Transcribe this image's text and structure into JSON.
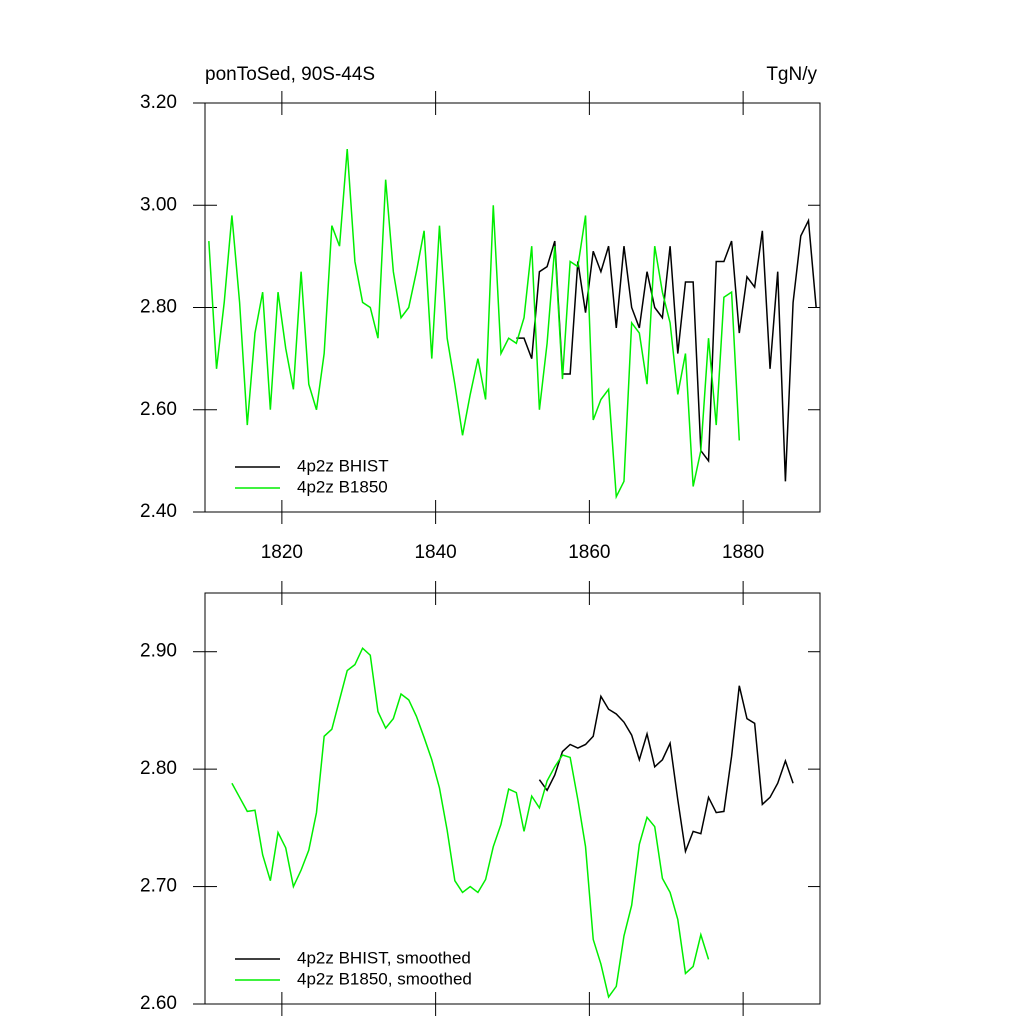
{
  "chart_data": [
    {
      "type": "line",
      "title": "ponToSed, 90S-44S",
      "subtitle": "TgN/y",
      "xlim": [
        1810,
        1890
      ],
      "xticks": [
        1820,
        1840,
        1860,
        1880
      ],
      "ylim": [
        2.4,
        3.2
      ],
      "yticks": [
        {
          "value": 2.4,
          "label": "2.40"
        },
        {
          "value": 2.6,
          "label": "2.60"
        },
        {
          "value": 2.8,
          "label": "2.80"
        },
        {
          "value": 3.0,
          "label": "3.00"
        },
        {
          "value": 3.2,
          "label": "3.20"
        }
      ],
      "legend": "lower left",
      "series": [
        {
          "name": "4p2z BHIST",
          "color": "#000000",
          "x": [
            1850.5,
            1851.5,
            1852.5,
            1853.5,
            1854.5,
            1855.5,
            1856.5,
            1857.5,
            1858.5,
            1859.5,
            1860.5,
            1861.5,
            1862.5,
            1863.5,
            1864.5,
            1865.5,
            1866.5,
            1867.5,
            1868.5,
            1869.5,
            1870.5,
            1871.5,
            1872.5,
            1873.5,
            1874.5,
            1875.5,
            1876.5,
            1877.5,
            1878.5,
            1879.5,
            1880.5,
            1881.5,
            1882.5,
            1883.5,
            1884.5,
            1885.5,
            1886.5,
            1887.5,
            1888.5,
            1889.5
          ],
          "values": [
            2.74,
            2.74,
            2.7,
            2.87,
            2.88,
            2.93,
            2.67,
            2.67,
            2.89,
            2.79,
            2.91,
            2.87,
            2.92,
            2.76,
            2.92,
            2.8,
            2.76,
            2.87,
            2.8,
            2.78,
            2.92,
            2.71,
            2.85,
            2.85,
            2.52,
            2.5,
            2.89,
            2.89,
            2.93,
            2.75,
            2.86,
            2.84,
            2.95,
            2.68,
            2.87,
            2.46,
            2.81,
            2.94,
            2.97,
            2.8
          ]
        },
        {
          "name": "4p2z B1850",
          "color": "#00ee00",
          "x": [
            1810.5,
            1811.5,
            1812.5,
            1813.5,
            1814.5,
            1815.5,
            1816.5,
            1817.5,
            1818.5,
            1819.5,
            1820.5,
            1821.5,
            1822.5,
            1823.5,
            1824.5,
            1825.5,
            1826.5,
            1827.5,
            1828.5,
            1829.5,
            1830.5,
            1831.5,
            1832.5,
            1833.5,
            1834.5,
            1835.5,
            1836.5,
            1837.5,
            1838.5,
            1839.5,
            1840.5,
            1841.5,
            1842.5,
            1843.5,
            1844.5,
            1845.5,
            1846.5,
            1847.5,
            1848.5,
            1849.5,
            1850.5,
            1851.5,
            1852.5,
            1853.5,
            1854.5,
            1855.5,
            1856.5,
            1857.5,
            1858.5,
            1859.5,
            1860.5,
            1861.5,
            1862.5,
            1863.5,
            1864.5,
            1865.5,
            1866.5,
            1867.5,
            1868.5,
            1869.5,
            1870.5,
            1871.5,
            1872.5,
            1873.5,
            1874.5,
            1875.5,
            1876.5,
            1877.5,
            1878.5,
            1879.5
          ],
          "values": [
            2.93,
            2.68,
            2.81,
            2.98,
            2.81,
            2.57,
            2.75,
            2.83,
            2.6,
            2.83,
            2.72,
            2.64,
            2.87,
            2.65,
            2.6,
            2.71,
            2.96,
            2.92,
            3.11,
            2.89,
            2.81,
            2.8,
            2.74,
            3.05,
            2.87,
            2.78,
            2.8,
            2.87,
            2.95,
            2.7,
            2.96,
            2.74,
            2.65,
            2.55,
            2.63,
            2.7,
            2.62,
            3.0,
            2.71,
            2.74,
            2.73,
            2.78,
            2.92,
            2.6,
            2.73,
            2.92,
            2.66,
            2.89,
            2.88,
            2.98,
            2.58,
            2.62,
            2.64,
            2.43,
            2.46,
            2.77,
            2.75,
            2.65,
            2.92,
            2.83,
            2.77,
            2.63,
            2.71,
            2.45,
            2.52,
            2.74,
            2.57,
            2.82,
            2.83,
            2.54
          ]
        }
      ]
    },
    {
      "type": "line",
      "xlim": [
        1810,
        1890
      ],
      "xticks": [
        1820,
        1840,
        1860,
        1880
      ],
      "ylim": [
        2.6,
        2.95
      ],
      "yticks": [
        {
          "value": 2.6,
          "label": "2.60"
        },
        {
          "value": 2.7,
          "label": "2.70"
        },
        {
          "value": 2.8,
          "label": "2.80"
        },
        {
          "value": 2.9,
          "label": "2.90"
        }
      ],
      "legend": "lower left",
      "series": [
        {
          "name": "4p2z BHIST, smoothed",
          "color": "#000000",
          "x": [
            1853.5,
            1854.5,
            1855.5,
            1856.5,
            1857.5,
            1858.5,
            1859.5,
            1860.5,
            1861.5,
            1862.5,
            1863.5,
            1864.5,
            1865.5,
            1866.5,
            1867.5,
            1868.5,
            1869.5,
            1870.5,
            1871.5,
            1872.5,
            1873.5,
            1874.5,
            1875.5,
            1876.5,
            1877.5,
            1878.5,
            1879.5,
            1880.5,
            1881.5,
            1882.5,
            1883.5,
            1884.5,
            1885.5,
            1886.5
          ],
          "values": [
            2.791,
            2.782,
            2.795,
            2.815,
            2.821,
            2.818,
            2.821,
            2.828,
            2.862,
            2.851,
            2.847,
            2.84,
            2.829,
            2.808,
            2.83,
            2.802,
            2.808,
            2.822,
            2.774,
            2.73,
            2.747,
            2.745,
            2.776,
            2.763,
            2.764,
            2.811,
            2.871,
            2.843,
            2.839,
            2.77,
            2.776,
            2.788,
            2.807,
            2.788
          ]
        },
        {
          "name": "4p2z B1850, smoothed",
          "color": "#00ee00",
          "x": [
            1813.5,
            1814.5,
            1815.5,
            1816.5,
            1817.5,
            1818.5,
            1819.5,
            1820.5,
            1821.5,
            1822.5,
            1823.5,
            1824.5,
            1825.5,
            1826.5,
            1827.5,
            1828.5,
            1829.5,
            1830.5,
            1831.5,
            1832.5,
            1833.5,
            1834.5,
            1835.5,
            1836.5,
            1837.5,
            1838.5,
            1839.5,
            1840.5,
            1841.5,
            1842.5,
            1843.5,
            1844.5,
            1845.5,
            1846.5,
            1847.5,
            1848.5,
            1849.5,
            1850.5,
            1851.5,
            1852.5,
            1853.5,
            1854.5,
            1855.5,
            1856.5,
            1857.5,
            1858.5,
            1859.5,
            1860.5,
            1861.5,
            1862.5,
            1863.5,
            1864.5,
            1865.5,
            1866.5,
            1867.5,
            1868.5,
            1869.5,
            1870.5,
            1871.5,
            1872.5,
            1873.5,
            1874.5,
            1875.5
          ],
          "values": [
            2.788,
            2.776,
            2.764,
            2.765,
            2.727,
            2.705,
            2.746,
            2.733,
            2.7,
            2.714,
            2.731,
            2.763,
            2.828,
            2.834,
            2.859,
            2.884,
            2.889,
            2.903,
            2.897,
            2.849,
            2.835,
            2.843,
            2.864,
            2.859,
            2.845,
            2.827,
            2.808,
            2.784,
            2.748,
            2.705,
            2.695,
            2.7,
            2.695,
            2.706,
            2.734,
            2.753,
            2.783,
            2.78,
            2.747,
            2.777,
            2.767,
            2.79,
            2.802,
            2.812,
            2.81,
            2.774,
            2.734,
            2.655,
            2.634,
            2.606,
            2.615,
            2.658,
            2.684,
            2.736,
            2.759,
            2.751,
            2.707,
            2.695,
            2.672,
            2.626,
            2.632,
            2.659,
            2.638
          ]
        }
      ]
    }
  ]
}
